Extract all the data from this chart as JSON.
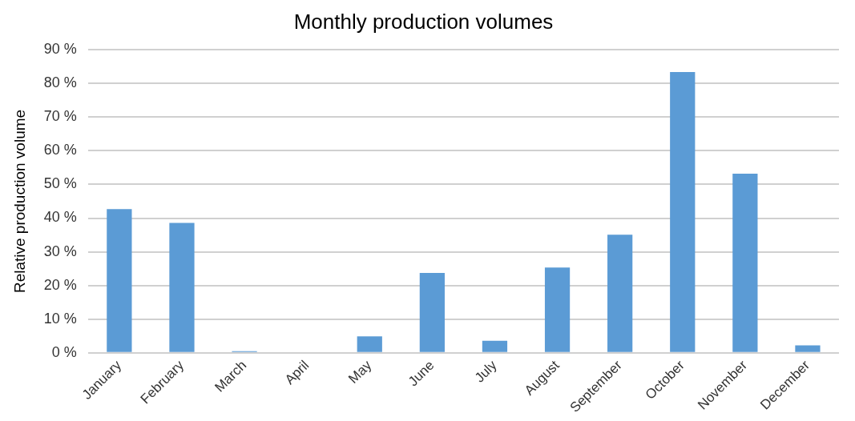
{
  "chart_data": {
    "type": "bar",
    "title": "Monthly production volumes",
    "ylabel": "Relative production volume",
    "categories": [
      "January",
      "February",
      "March",
      "April",
      "May",
      "June",
      "July",
      "August",
      "September",
      "October",
      "November",
      "December"
    ],
    "values": [
      42.7,
      38.6,
      0.5,
      0,
      4.9,
      23.7,
      3.6,
      25.3,
      35.1,
      83.4,
      53.2,
      2.2
    ],
    "color": "#5b9bd5",
    "ylim": [
      0,
      90
    ],
    "yticks": [
      {
        "value": 0,
        "label": "0 %"
      },
      {
        "value": 10,
        "label": "10 %"
      },
      {
        "value": 20,
        "label": "20 %"
      },
      {
        "value": 30,
        "label": "30 %"
      },
      {
        "value": 40,
        "label": "40 %"
      },
      {
        "value": 50,
        "label": "50 %"
      },
      {
        "value": 60,
        "label": "60 %"
      },
      {
        "value": 70,
        "label": "70 %"
      },
      {
        "value": 80,
        "label": "80 %"
      },
      {
        "value": 90,
        "label": "90 %"
      }
    ],
    "grid": "y",
    "legend": false
  }
}
